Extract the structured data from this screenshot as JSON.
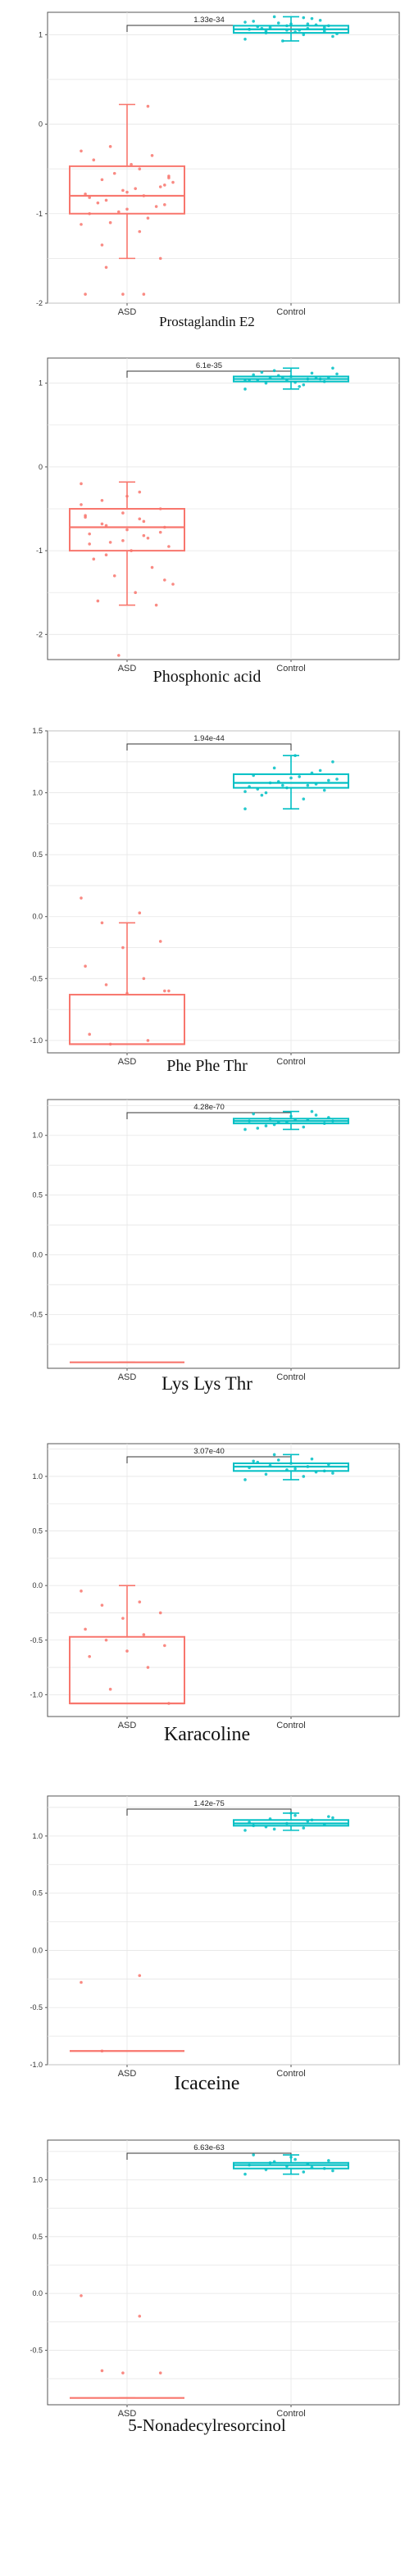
{
  "colors": {
    "ASD": "#f8766d",
    "Control": "#00bfc4",
    "grid": "#e6e6e6",
    "frame": "#555555"
  },
  "chart_data": [
    {
      "type": "box",
      "title": "Prostaglandin E2",
      "categories": [
        "ASD",
        "Control"
      ],
      "ylim": [
        -2.0,
        1.25
      ],
      "yticks": [
        -2,
        -1,
        0,
        1
      ],
      "ytick_labels": [
        "-2",
        "-1",
        "0",
        "1"
      ],
      "annotation": "1.33e-34",
      "grid": true,
      "boxes": [
        {
          "category": "ASD",
          "min": -1.5,
          "q1": -1.0,
          "median": -0.8,
          "q3": -0.47,
          "max": 0.22,
          "points": [
            -0.3,
            -0.5,
            -0.62,
            -0.7,
            -0.74,
            -0.78,
            -0.8,
            -0.85,
            -0.9,
            -0.95,
            -1.0,
            -1.05,
            -1.1,
            -0.6,
            -0.45,
            -0.4,
            -0.35,
            -0.55,
            -0.65,
            -0.72,
            -0.88,
            -0.92,
            -0.98,
            -1.12,
            -1.2,
            -1.35,
            -1.5,
            -1.9,
            -1.9,
            -1.9,
            -1.6,
            -0.68,
            -0.76,
            -0.82,
            0.2,
            -0.25,
            -0.58
          ]
        },
        {
          "category": "Control",
          "min": 0.93,
          "q1": 1.02,
          "median": 1.06,
          "q3": 1.1,
          "max": 1.2,
          "points": [
            0.95,
            1.0,
            1.02,
            1.04,
            1.05,
            1.06,
            1.07,
            1.08,
            1.1,
            1.12,
            1.15,
            1.18,
            1.2,
            0.98,
            1.03,
            1.09,
            1.11,
            1.13,
            1.01,
            1.05,
            1.07,
            1.16,
            0.93,
            1.14,
            1.19,
            1.04,
            1.08,
            1.1,
            1.06,
            1.12
          ]
        }
      ]
    },
    {
      "type": "box",
      "title": "Phosphonic acid",
      "categories": [
        "ASD",
        "Control"
      ],
      "ylim": [
        -2.3,
        1.3
      ],
      "yticks": [
        -2,
        -1,
        0,
        1
      ],
      "ytick_labels": [
        "-2",
        "-1",
        "0",
        "1"
      ],
      "annotation": "6.1e-35",
      "grid": true,
      "boxes": [
        {
          "category": "ASD",
          "min": -1.65,
          "q1": -1.0,
          "median": -0.72,
          "q3": -0.5,
          "max": -0.18,
          "points": [
            -0.2,
            -0.3,
            -0.4,
            -0.5,
            -0.55,
            -0.6,
            -0.65,
            -0.7,
            -0.72,
            -0.75,
            -0.8,
            -0.85,
            -0.9,
            -0.95,
            -1.0,
            -1.1,
            -1.2,
            -1.3,
            -1.4,
            -1.5,
            -1.6,
            -1.65,
            -2.25,
            -0.45,
            -0.62,
            -0.68,
            -0.78,
            -0.88,
            -0.58,
            -0.82,
            -1.05,
            -1.35,
            -0.35,
            -0.92
          ]
        },
        {
          "category": "Control",
          "min": 0.93,
          "q1": 1.02,
          "median": 1.05,
          "q3": 1.08,
          "max": 1.18,
          "points": [
            0.93,
            0.98,
            1.0,
            1.02,
            1.03,
            1.04,
            1.05,
            1.06,
            1.07,
            1.08,
            1.1,
            1.12,
            1.15,
            1.18,
            1.01,
            1.04,
            1.06,
            1.09,
            1.11,
            0.96,
            1.13,
            1.05,
            1.07,
            1.03
          ]
        }
      ]
    },
    {
      "type": "box",
      "title": "Phe Phe Thr",
      "categories": [
        "ASD",
        "Control"
      ],
      "ylim": [
        -1.1,
        1.5
      ],
      "yticks": [
        -1.0,
        -0.5,
        0.0,
        0.5,
        1.0,
        1.5
      ],
      "ytick_labels": [
        "-1.0",
        "-0.5",
        "0.0",
        "0.5",
        "1.0",
        "1.5"
      ],
      "annotation": "1.94e-44",
      "grid": true,
      "boxes": [
        {
          "category": "ASD",
          "min": -1.03,
          "q1": -1.03,
          "median": -1.03,
          "q3": -0.63,
          "max": -0.05,
          "points": [
            0.15,
            0.03,
            -0.05,
            -0.2,
            -0.25,
            -0.4,
            -0.5,
            -0.55,
            -0.6,
            -0.62,
            -0.95,
            -1.0,
            -1.03,
            -0.6
          ]
        },
        {
          "category": "Control",
          "min": 0.87,
          "q1": 1.04,
          "median": 1.08,
          "q3": 1.15,
          "max": 1.3,
          "points": [
            0.87,
            0.95,
            1.0,
            1.02,
            1.04,
            1.05,
            1.06,
            1.08,
            1.1,
            1.12,
            1.14,
            1.16,
            1.2,
            1.25,
            1.3,
            1.03,
            1.07,
            1.09,
            1.11,
            1.13,
            0.98,
            1.18,
            1.06,
            1.01
          ]
        }
      ]
    },
    {
      "type": "box",
      "title": "Lys Lys Thr",
      "categories": [
        "ASD",
        "Control"
      ],
      "ylim": [
        -0.95,
        1.3
      ],
      "yticks": [
        -0.5,
        0.0,
        0.5,
        1.0
      ],
      "ytick_labels": [
        "-0.5",
        "0.0",
        "0.5",
        "1.0"
      ],
      "annotation": "4.28e-70",
      "grid": true,
      "boxes": [
        {
          "category": "ASD",
          "min": -0.9,
          "q1": -0.9,
          "median": -0.9,
          "q3": -0.9,
          "max": -0.9,
          "points": []
        },
        {
          "category": "Control",
          "min": 1.05,
          "q1": 1.1,
          "median": 1.12,
          "q3": 1.14,
          "max": 1.2,
          "points": [
            1.05,
            1.07,
            1.08,
            1.1,
            1.11,
            1.12,
            1.13,
            1.14,
            1.15,
            1.16,
            1.18,
            1.2,
            1.09,
            1.12,
            1.13,
            1.06,
            1.17,
            1.11
          ]
        }
      ]
    },
    {
      "type": "box",
      "title": "Karacoline",
      "categories": [
        "ASD",
        "Control"
      ],
      "ylim": [
        -1.2,
        1.3
      ],
      "yticks": [
        -1.0,
        -0.5,
        0.0,
        0.5,
        1.0
      ],
      "ytick_labels": [
        "-1.0",
        "-0.5",
        "0.0",
        "0.5",
        "1.0"
      ],
      "annotation": "3.07e-40",
      "grid": true,
      "boxes": [
        {
          "category": "ASD",
          "min": -1.08,
          "q1": -1.08,
          "median": -1.08,
          "q3": -0.47,
          "max": 0.0,
          "points": [
            -0.05,
            -0.15,
            -0.18,
            -0.25,
            -0.3,
            -0.4,
            -0.45,
            -0.5,
            -0.55,
            -0.6,
            -0.65,
            -0.75,
            -0.95,
            -1.08
          ]
        },
        {
          "category": "Control",
          "min": 0.97,
          "q1": 1.05,
          "median": 1.09,
          "q3": 1.12,
          "max": 1.2,
          "points": [
            0.97,
            1.0,
            1.02,
            1.05,
            1.06,
            1.08,
            1.09,
            1.1,
            1.11,
            1.12,
            1.14,
            1.16,
            1.2,
            1.03,
            1.07,
            1.13,
            1.04,
            1.15
          ]
        }
      ]
    },
    {
      "type": "box",
      "title": "Icaceine",
      "categories": [
        "ASD",
        "Control"
      ],
      "ylim": [
        -1.0,
        1.35
      ],
      "yticks": [
        -1.0,
        -0.5,
        0.0,
        0.5,
        1.0
      ],
      "ytick_labels": [
        "-1.0",
        "-0.5",
        "0.0",
        "0.5",
        "1.0"
      ],
      "annotation": "1.42e-75",
      "grid": true,
      "boxes": [
        {
          "category": "ASD",
          "min": -0.88,
          "q1": -0.88,
          "median": -0.88,
          "q3": -0.88,
          "max": -0.88,
          "points": [
            -0.28,
            -0.22,
            -0.88
          ]
        },
        {
          "category": "Control",
          "min": 1.05,
          "q1": 1.09,
          "median": 1.11,
          "q3": 1.14,
          "max": 1.2,
          "points": [
            1.05,
            1.07,
            1.08,
            1.1,
            1.11,
            1.12,
            1.13,
            1.15,
            1.17,
            1.2,
            1.09,
            1.14,
            1.06,
            1.16,
            1.18
          ]
        }
      ]
    },
    {
      "type": "box",
      "title": "5-Nonadecylresorcinol",
      "categories": [
        "ASD",
        "Control"
      ],
      "ylim": [
        -0.98,
        1.35
      ],
      "yticks": [
        -0.5,
        0.0,
        0.5,
        1.0
      ],
      "ytick_labels": [
        "-0.5",
        "0.0",
        "0.5",
        "1.0"
      ],
      "annotation": "6.63e-63",
      "grid": true,
      "boxes": [
        {
          "category": "ASD",
          "min": -0.92,
          "q1": -0.92,
          "median": -0.92,
          "q3": -0.92,
          "max": -0.92,
          "points": [
            -0.02,
            -0.2,
            -0.68,
            -0.7,
            -0.7
          ]
        },
        {
          "category": "Control",
          "min": 1.05,
          "q1": 1.1,
          "median": 1.13,
          "q3": 1.15,
          "max": 1.22,
          "points": [
            1.05,
            1.07,
            1.09,
            1.1,
            1.12,
            1.13,
            1.14,
            1.15,
            1.17,
            1.2,
            1.22,
            1.11,
            1.16,
            1.08,
            1.18
          ]
        }
      ]
    }
  ]
}
